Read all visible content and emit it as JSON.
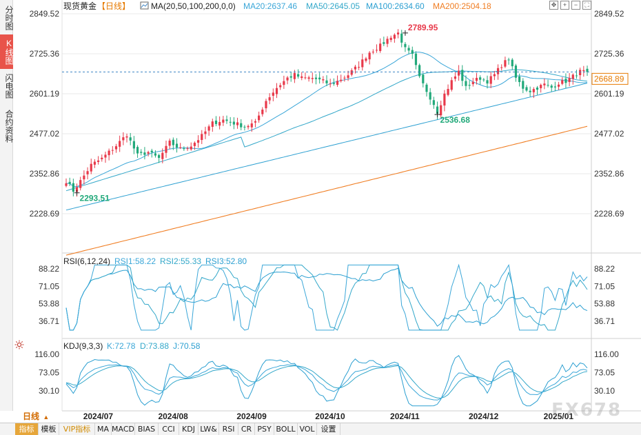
{
  "rail": {
    "tabs": [
      {
        "label": "分时图",
        "active": false
      },
      {
        "label": "K线图",
        "active": true
      },
      {
        "label": "闪电图",
        "active": false
      },
      {
        "label": "合约资料",
        "active": false
      }
    ]
  },
  "header": {
    "symbol": "现货黄金",
    "period_tag": "【日线】",
    "ma_label": "MA(20,50,100,200,0,0)",
    "ma20_label": "MA20:2637.46",
    "ma50_label": "MA50:2645.05",
    "ma100_label": "MA100:2634.60",
    "ma200_label": "MA200:2504.18"
  },
  "rsi_header": {
    "name": "RSI(6,12,24)",
    "rsi1_label": "RSI1:58.22",
    "rsi2_label": "RSI2:55.33",
    "rsi3_label": "RSI3:52.80"
  },
  "kdj_header": {
    "name": "KDJ(9,3,3)",
    "k_label": "K:72.78",
    "d_label": "D:73.88",
    "j_label": "J:70.58"
  },
  "period_toggle": "日线",
  "bottom_tabs": [
    "指标",
    "模板",
    "VIP指标",
    "MA",
    "MACD",
    "BIAS",
    "CCI",
    "KDJ",
    "LW&",
    "RSI",
    "CR",
    "PSY",
    "BOLL",
    "VOL",
    "设置"
  ],
  "watermark": "FX678",
  "colors": {
    "up": "#e8394a",
    "down": "#21a97a",
    "ma20": "#3aa6d8",
    "ma50": "#32a7c9",
    "ma100": "#2b9fd1",
    "ma200": "#f07d22",
    "rsi": "#3aa6d8",
    "grid": "#e9e9e9",
    "dash": "#3a82c4"
  },
  "chart_data": [
    {
      "type": "candlestick",
      "title": "现货黄金【日线】",
      "x_labels": [
        "2024/07",
        "2024/08",
        "2024/09",
        "2024/10",
        "2024/11",
        "2024/12",
        "2025/01"
      ],
      "y_ticks": [
        2849.52,
        2725.36,
        2601.19,
        2477.02,
        2352.86,
        2228.69
      ],
      "ylim": [
        2100,
        2880
      ],
      "current_price": 2668.89,
      "annotations": [
        {
          "text": "2789.95",
          "value": 2789.95
        },
        {
          "text": "2536.68",
          "value": 2536.68
        },
        {
          "text": "2293.51",
          "value": 2293.51
        }
      ],
      "close_anchors": [
        [
          0,
          2330
        ],
        [
          2,
          2300
        ],
        [
          4,
          2330
        ],
        [
          7,
          2380
        ],
        [
          10,
          2400
        ],
        [
          14,
          2440
        ],
        [
          17,
          2475
        ],
        [
          20,
          2410
        ],
        [
          23,
          2420
        ],
        [
          26,
          2400
        ],
        [
          29,
          2450
        ],
        [
          32,
          2430
        ],
        [
          35,
          2440
        ],
        [
          38,
          2470
        ],
        [
          41,
          2510
        ],
        [
          44,
          2520
        ],
        [
          47,
          2510
        ],
        [
          50,
          2500
        ],
        [
          53,
          2510
        ],
        [
          56,
          2580
        ],
        [
          59,
          2620
        ],
        [
          62,
          2650
        ],
        [
          64,
          2660
        ],
        [
          66,
          2650
        ],
        [
          69,
          2650
        ],
        [
          72,
          2640
        ],
        [
          74,
          2630
        ],
        [
          76,
          2640
        ],
        [
          79,
          2660
        ],
        [
          82,
          2690
        ],
        [
          85,
          2730
        ],
        [
          88,
          2750
        ],
        [
          91,
          2780
        ],
        [
          93,
          2790
        ],
        [
          95,
          2740
        ],
        [
          97,
          2720
        ],
        [
          99,
          2650
        ],
        [
          101,
          2610
        ],
        [
          103,
          2570
        ],
        [
          104,
          2545
        ],
        [
          106,
          2600
        ],
        [
          108,
          2640
        ],
        [
          110,
          2670
        ],
        [
          112,
          2620
        ],
        [
          114,
          2640
        ],
        [
          116,
          2650
        ],
        [
          118,
          2640
        ],
        [
          120,
          2660
        ],
        [
          122,
          2690
        ],
        [
          124,
          2710
        ],
        [
          126,
          2650
        ],
        [
          128,
          2620
        ],
        [
          130,
          2610
        ],
        [
          132,
          2620
        ],
        [
          134,
          2630
        ],
        [
          136,
          2620
        ],
        [
          138,
          2635
        ],
        [
          140,
          2640
        ],
        [
          142,
          2655
        ],
        [
          144,
          2670
        ],
        [
          146,
          2668.89
        ]
      ],
      "ma_series": [
        {
          "name": "MA20",
          "last": 2637.46
        },
        {
          "name": "MA50",
          "last": 2645.05
        },
        {
          "name": "MA100",
          "last": 2634.6
        },
        {
          "name": "MA200",
          "last": 2504.18
        }
      ]
    },
    {
      "type": "line",
      "title": "RSI(6,12,24)",
      "y_ticks": [
        88.22,
        71.05,
        53.88,
        36.71
      ],
      "ylim": [
        25,
        96
      ],
      "series": [
        {
          "name": "RSI1",
          "last": 58.22
        },
        {
          "name": "RSI2",
          "last": 55.33
        },
        {
          "name": "RSI3",
          "last": 52.8
        }
      ]
    },
    {
      "type": "line",
      "title": "KDJ(9,3,3)",
      "y_ticks": [
        116.0,
        73.05,
        30.1
      ],
      "ylim": [
        -10,
        135
      ],
      "series": [
        {
          "name": "K",
          "last": 72.78
        },
        {
          "name": "D",
          "last": 73.88
        },
        {
          "name": "J",
          "last": 70.58
        }
      ]
    }
  ]
}
